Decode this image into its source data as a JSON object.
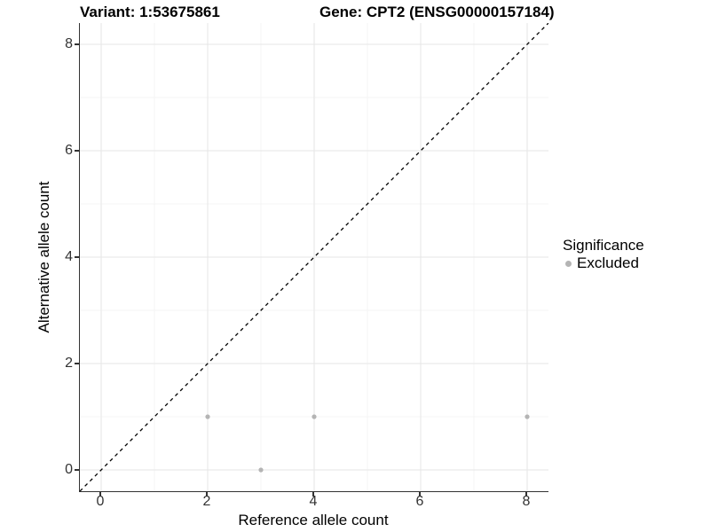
{
  "chart_data": {
    "type": "scatter",
    "title_left": "Variant: 1:53675861",
    "title_right": "Gene: CPT2 (ENSG00000157184)",
    "xlabel": "Reference allele count",
    "ylabel": "Alternative allele count",
    "xlim": [
      -0.4,
      8.4
    ],
    "ylim": [
      -0.4,
      8.4
    ],
    "x_ticks": [
      0,
      2,
      4,
      6,
      8
    ],
    "y_ticks": [
      0,
      2,
      4,
      6,
      8
    ],
    "x_minor_gridlines": [
      1,
      3,
      5,
      7
    ],
    "y_minor_gridlines": [
      1,
      3,
      5,
      7
    ],
    "grid": "major-and-minor",
    "reference_line": {
      "type": "identity-diagonal",
      "style": "dashed",
      "color": "#000000"
    },
    "series": [
      {
        "name": "Excluded",
        "color": "#b4b4b4",
        "points": [
          {
            "x": 2,
            "y": 1
          },
          {
            "x": 3,
            "y": 0
          },
          {
            "x": 4,
            "y": 1
          },
          {
            "x": 8,
            "y": 1
          }
        ]
      }
    ],
    "legend": {
      "title": "Significance",
      "position": "right",
      "entries": [
        {
          "label": "Excluded",
          "color": "#b4b4b4"
        }
      ]
    }
  },
  "colors": {
    "background": "#ffffff",
    "grid_major": "#e9e9e9",
    "grid_minor": "#f4f4f4",
    "axis_line": "#333333",
    "tick_label": "#333333",
    "title_text": "#000000",
    "point": "#b4b4b4",
    "dashed_line": "#000000"
  }
}
